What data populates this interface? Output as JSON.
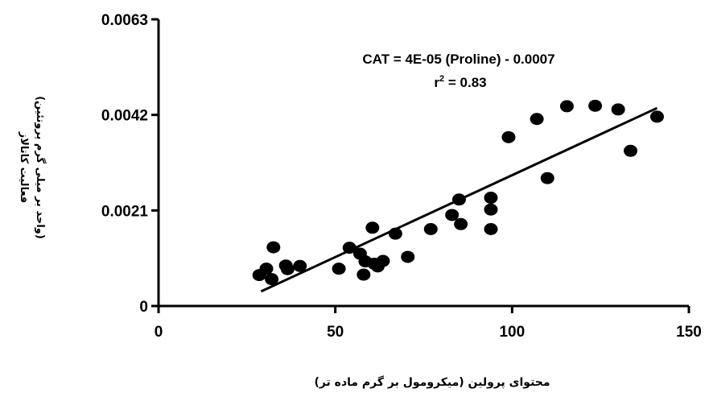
{
  "chart_data": {
    "type": "scatter",
    "xlabel": "محتوای پرولین (میکرومول بر گرم ماده تر)",
    "ylabel_lines": [
      "فعالیت کاتالاز",
      "(واحد بر میلی گرم پروتئین)"
    ],
    "xlim": [
      0,
      150
    ],
    "ylim": [
      0,
      0.0063
    ],
    "x_ticks": [
      0,
      50,
      100,
      150
    ],
    "x_tick_labels": [
      "0",
      "50",
      "100",
      "150"
    ],
    "y_ticks": [
      0,
      0.0021,
      0.0042,
      0.0063
    ],
    "y_tick_labels": [
      "0",
      "0.0021",
      "0.0042",
      "0.0063"
    ],
    "grid": false,
    "legend": "none",
    "annotation": {
      "equation": "CAT = 4E-05 (Proline) - 0.0007",
      "r2_prefix": "r",
      "r2_sup": "2",
      "r2_suffix": " = 0.83"
    },
    "trendline": {
      "x": [
        29,
        141
      ],
      "y": [
        0.00032,
        0.00435
      ]
    },
    "points": [
      {
        "x": 28.5,
        "y": 0.00068
      },
      {
        "x": 30.5,
        "y": 0.00082
      },
      {
        "x": 32,
        "y": 0.00059
      },
      {
        "x": 32.5,
        "y": 0.00129
      },
      {
        "x": 36,
        "y": 0.00089
      },
      {
        "x": 36.5,
        "y": 0.00081
      },
      {
        "x": 40,
        "y": 0.00088
      },
      {
        "x": 51,
        "y": 0.00082
      },
      {
        "x": 54,
        "y": 0.00128
      },
      {
        "x": 57,
        "y": 0.00115
      },
      {
        "x": 58,
        "y": 0.00069
      },
      {
        "x": 58.5,
        "y": 0.00098
      },
      {
        "x": 60.5,
        "y": 0.00172
      },
      {
        "x": 61,
        "y": 0.00093
      },
      {
        "x": 62,
        "y": 0.00087
      },
      {
        "x": 63.5,
        "y": 0.00099
      },
      {
        "x": 67,
        "y": 0.00159
      },
      {
        "x": 70.5,
        "y": 0.00108
      },
      {
        "x": 77,
        "y": 0.00169
      },
      {
        "x": 83,
        "y": 0.002
      },
      {
        "x": 85,
        "y": 0.00234
      },
      {
        "x": 85.5,
        "y": 0.0018
      },
      {
        "x": 94,
        "y": 0.00238
      },
      {
        "x": 94,
        "y": 0.00212
      },
      {
        "x": 94,
        "y": 0.00169
      },
      {
        "x": 99,
        "y": 0.00371
      },
      {
        "x": 107,
        "y": 0.00411
      },
      {
        "x": 110,
        "y": 0.00281
      },
      {
        "x": 115.5,
        "y": 0.00439
      },
      {
        "x": 123.5,
        "y": 0.0044
      },
      {
        "x": 130,
        "y": 0.00432
      },
      {
        "x": 133.5,
        "y": 0.00341
      },
      {
        "x": 141,
        "y": 0.00416
      }
    ]
  },
  "colors": {
    "marker": "#000000",
    "axis": "#000000",
    "background": "#ffffff"
  }
}
